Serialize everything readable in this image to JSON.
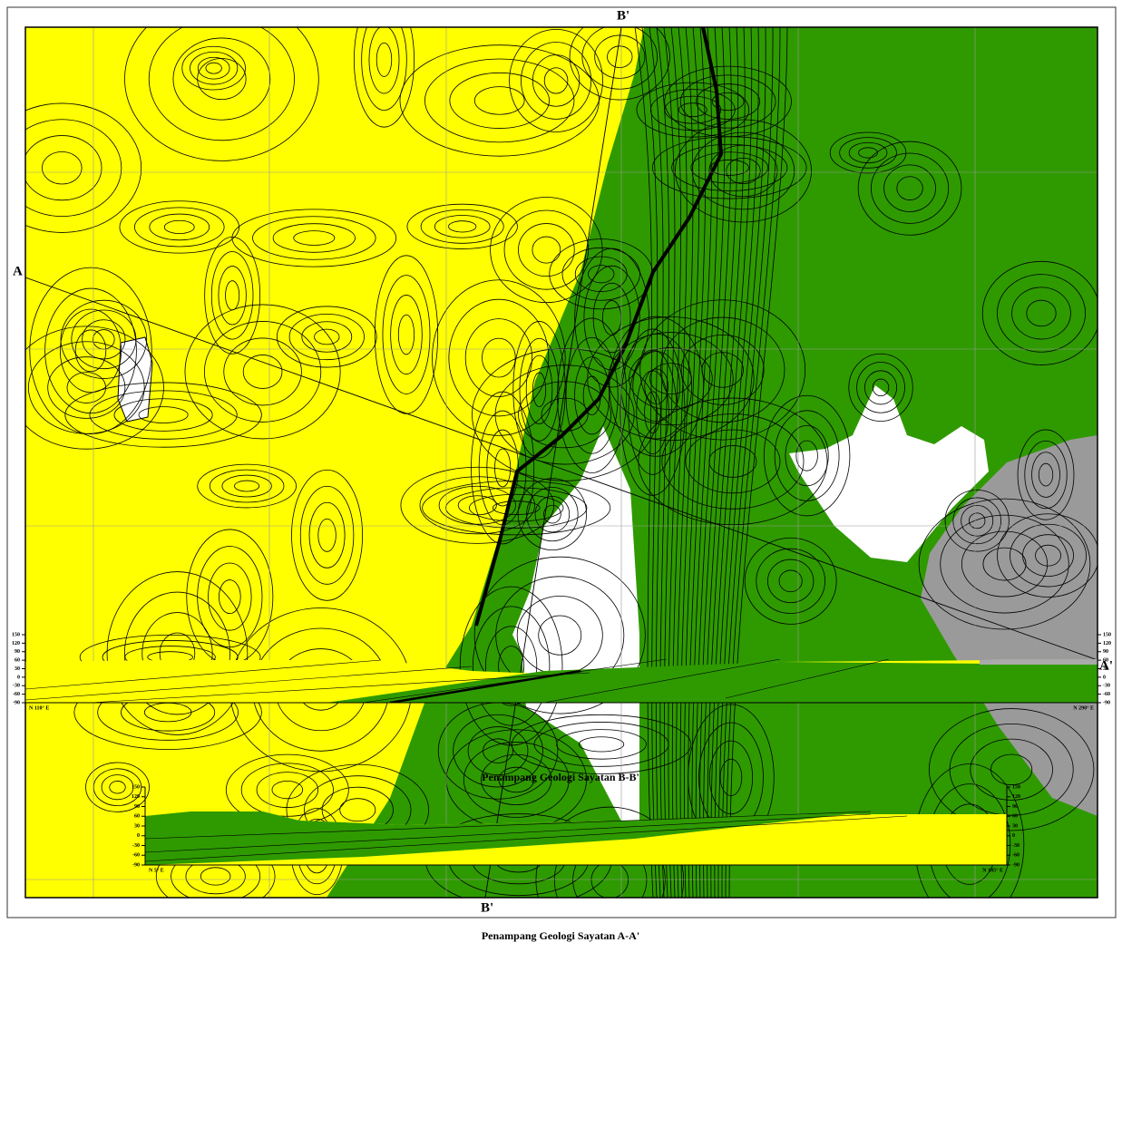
{
  "map": {
    "labels": {
      "a": "A",
      "a_prime": "A'",
      "b_prime_top": "B'",
      "b_prime_bottom": "B'"
    }
  },
  "sections": [
    {
      "title": "Penampang Geologi Sayatan A-A'",
      "left_direction": "N 110° E",
      "right_direction": "N 290° E",
      "ticks": [
        150,
        120,
        90,
        60,
        30,
        0,
        -30,
        -60,
        -90
      ]
    },
    {
      "title": "Penampang Geologi Sayatan B-B'",
      "left_direction": "N 5° E",
      "right_direction": "N 185° E",
      "ticks": [
        150,
        120,
        90,
        60,
        30,
        0,
        -30,
        -60,
        -90
      ]
    }
  ]
}
